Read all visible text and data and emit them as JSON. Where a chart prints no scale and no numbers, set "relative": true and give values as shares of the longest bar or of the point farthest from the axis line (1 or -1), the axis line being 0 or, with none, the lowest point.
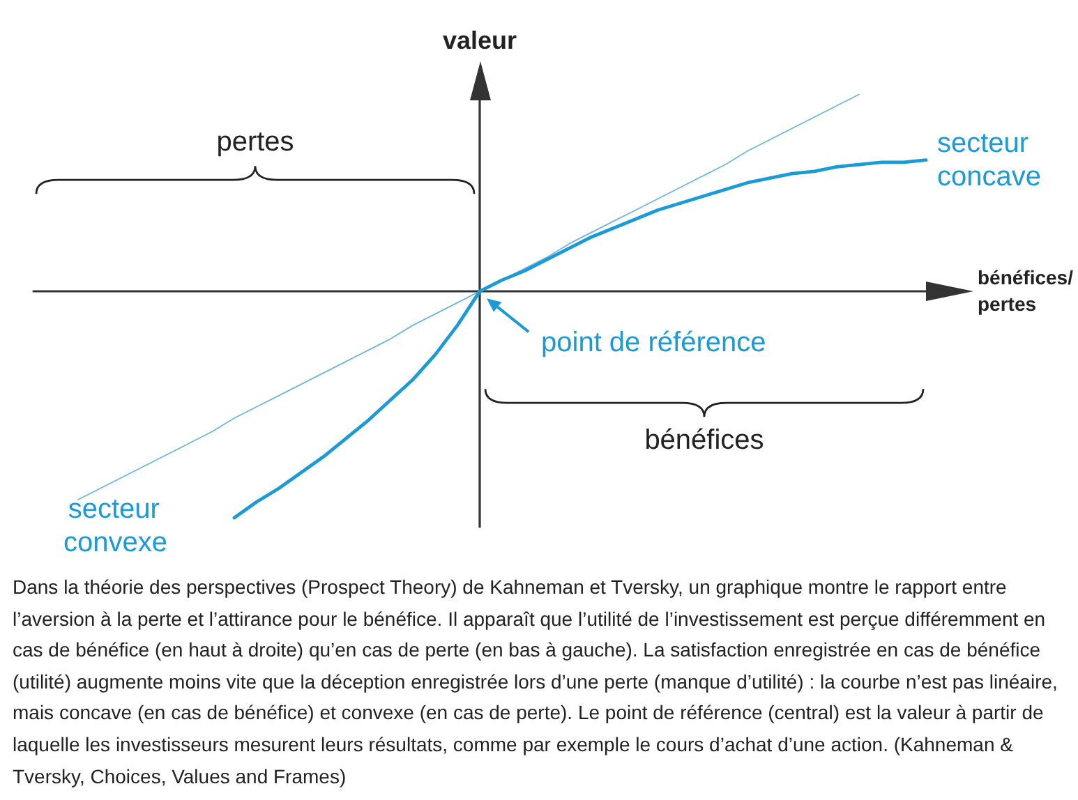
{
  "chart_data": {
    "type": "line",
    "xlabel": "bénéfices/ pertes",
    "ylabel": "valeur",
    "relative": true,
    "line_style": "solid",
    "categories": [
      null,
      null,
      null,
      null,
      null,
      null,
      null,
      null,
      null,
      null,
      null,
      null,
      null,
      null,
      null,
      null,
      null,
      null,
      null,
      null,
      null,
      null,
      null,
      null,
      null,
      null,
      null,
      null,
      null,
      null,
      null,
      null,
      null,
      null,
      null,
      null,
      null,
      null,
      null,
      null,
      null
    ],
    "series": [
      {
        "color": "#6fb6d8",
        "values": [
          null,
          null,
          -0.92,
          -0.87,
          -0.82,
          -0.77,
          -0.72,
          -0.67,
          -0.62,
          -0.56,
          -0.51,
          -0.46,
          -0.41,
          -0.36,
          -0.31,
          -0.26,
          -0.21,
          -0.15,
          -0.1,
          -0.05,
          0,
          0.05,
          0.1,
          0.15,
          0.21,
          0.26,
          0.31,
          0.36,
          0.41,
          0.46,
          0.51,
          0.56,
          0.62,
          0.67,
          0.72,
          0.77,
          0.82,
          0.87,
          null,
          null,
          null
        ]
      },
      {
        "color": "#1b9ad6",
        "values": [
          null,
          null,
          null,
          null,
          null,
          null,
          null,
          null,
          null,
          -1.0,
          -0.93,
          -0.87,
          -0.8,
          -0.73,
          -0.65,
          -0.57,
          -0.48,
          -0.39,
          -0.28,
          -0.15,
          0,
          0.05,
          0.09,
          0.14,
          0.19,
          0.24,
          0.28,
          0.32,
          0.36,
          0.39,
          0.42,
          0.45,
          0.48,
          0.5,
          0.52,
          0.53,
          0.55,
          0.56,
          0.57,
          0.57,
          0.58
        ]
      }
    ],
    "annotations": [
      "secteur concave",
      "secteur convexe",
      "point de référence",
      "pertes",
      "bénéfices",
      "Dans la théorie des perspectives (Prospect Theory) de Kahneman et Tversky, un graphique montre le rapport entre l’aversion à la perte et l’attirance pour le bénéfice. Il apparaît que l’utilité de l’investissement est perçue différemment en cas de bénéfice (en haut à droite) qu’en cas de perte (en bas à gauche). La satisfaction enregistrée en cas de bénéfice (utilité) augmente moins vite que la déception enregistrée lors d’une perte (manque d’utilité) : la courbe n’est pas linéaire, mais concave (en cas de bénéfice) et convexe (en cas de perte). Le point de référence (central) est la valeur à partir de laquelle les investisseurs mesurent leurs résultats, comme par exemple le cours d’achat d’une action. (Kahneman & Tversky, Choices, Values and Frames)"
    ]
  }
}
